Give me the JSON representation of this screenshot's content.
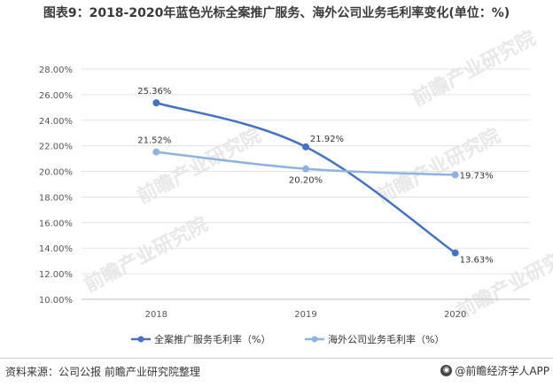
{
  "title": "图表9：2018-2020年蓝色光标全案推广服务、海外公司业务毛利率变化(单位：%)",
  "source": "资料来源：公司公报 前瞻产业研究院整理",
  "brand": "@前瞻经济学人APP",
  "watermark": "前瞻产业研究院",
  "chart_data": {
    "type": "line",
    "categories": [
      "2018",
      "2019",
      "2020"
    ],
    "ylim": [
      10,
      28
    ],
    "yticks": [
      10,
      12,
      14,
      16,
      18,
      20,
      22,
      24,
      26,
      28
    ],
    "ytick_labels": [
      "10.00%",
      "12.00%",
      "14.00%",
      "16.00%",
      "18.00%",
      "20.00%",
      "22.00%",
      "24.00%",
      "26.00%",
      "28.00%"
    ],
    "grid": true,
    "legend": "bottom",
    "series": [
      {
        "name": "全案推广服务毛利率（%）",
        "values": [
          25.36,
          21.92,
          13.63
        ],
        "labels": [
          "25.36%",
          "21.92%",
          "13.63%"
        ],
        "color": "#4472c4"
      },
      {
        "name": "海外公司业务毛利率（%）",
        "values": [
          21.52,
          20.2,
          19.73
        ],
        "labels": [
          "21.52%",
          "20.20%",
          "19.73%"
        ],
        "color": "#8fb3e0"
      }
    ]
  }
}
